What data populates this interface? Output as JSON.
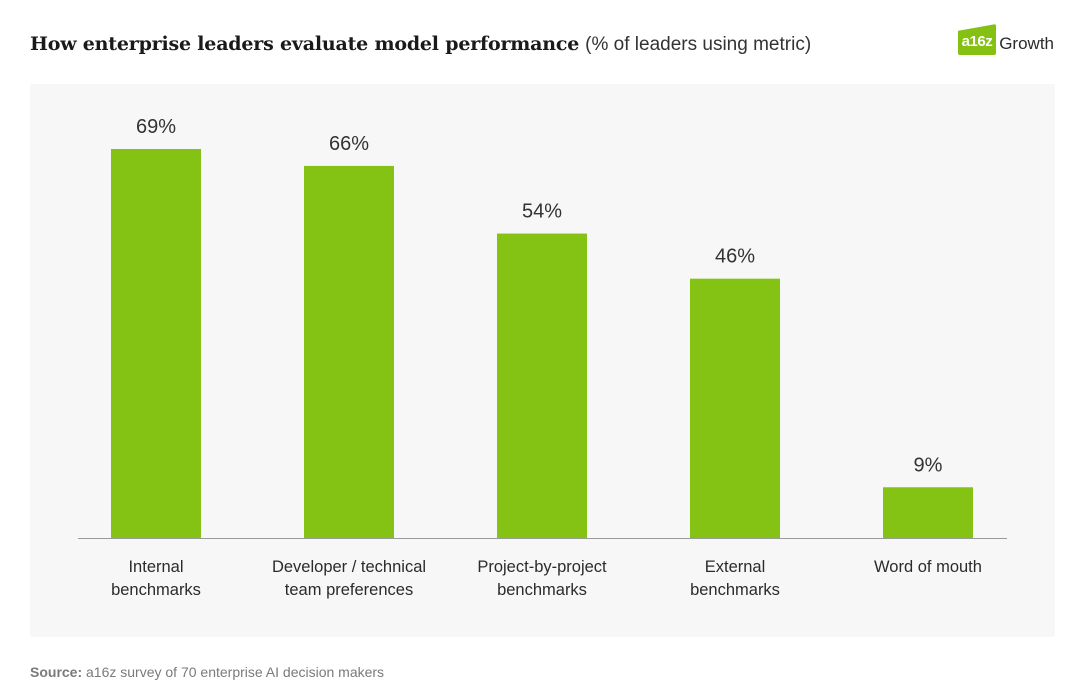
{
  "header": {
    "title": "How enterprise leaders evaluate model performance",
    "subtitle": "(% of leaders using metric)"
  },
  "logo": {
    "mark": "a16z",
    "text": "Growth",
    "color": "#84c113"
  },
  "footer": {
    "source_label": "Source:",
    "source_text": "a16z survey of 70 enterprise AI decision makers"
  },
  "chart_data": {
    "type": "bar",
    "title": "How enterprise leaders evaluate model performance",
    "subtitle": "(% of leaders using metric)",
    "xlabel": "",
    "ylabel": "",
    "ylim": [
      0,
      69
    ],
    "grid": false,
    "legend": "none",
    "bar_color": "#84c313",
    "categories": [
      [
        "Internal",
        "benchmarks"
      ],
      [
        "Developer / technical",
        "team preferences"
      ],
      [
        "Project-by-project",
        "benchmarks"
      ],
      [
        "External",
        "benchmarks"
      ],
      [
        "Word of mouth"
      ]
    ],
    "values": [
      69,
      66,
      54,
      46,
      9
    ],
    "value_labels": [
      "69%",
      "66%",
      "54%",
      "46%",
      "9%"
    ]
  }
}
